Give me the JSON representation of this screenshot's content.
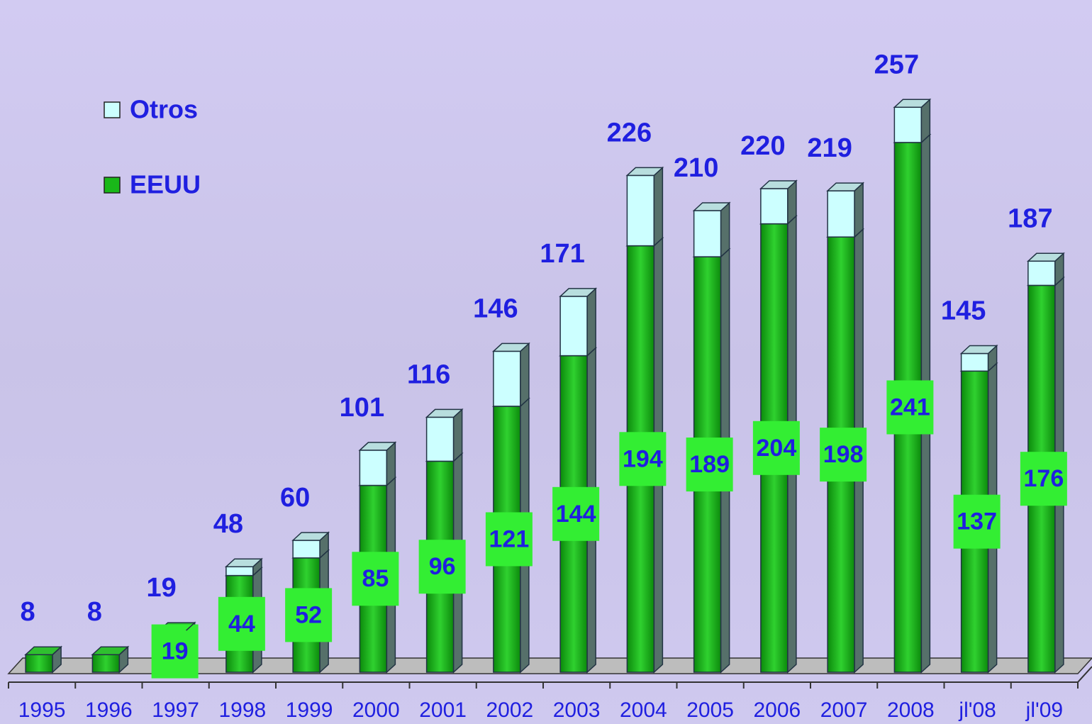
{
  "chart_data": {
    "type": "stacked-bar-3d",
    "categories": [
      "1995",
      "1996",
      "1997",
      "1998",
      "1999",
      "2000",
      "2001",
      "2002",
      "2003",
      "2004",
      "2005",
      "2006",
      "2007",
      "2008",
      "jl'08",
      "jl'09"
    ],
    "series": [
      {
        "name": "EEUU",
        "color": "#19b819",
        "values": [
          8,
          8,
          19,
          44,
          52,
          85,
          96,
          121,
          144,
          194,
          189,
          204,
          198,
          241,
          137,
          176
        ],
        "value_labels": [
          null,
          null,
          "19",
          "44",
          "52",
          "85",
          "96",
          "121",
          "144",
          "194",
          "189",
          "204",
          "198",
          "241",
          "137",
          "176"
        ]
      },
      {
        "name": "Otros",
        "color": "#ccffff",
        "values": [
          0,
          0,
          0,
          4,
          8,
          16,
          20,
          25,
          27,
          32,
          21,
          16,
          21,
          16,
          8,
          11
        ]
      }
    ],
    "totals": [
      8,
      8,
      19,
      48,
      60,
      101,
      116,
      146,
      171,
      226,
      210,
      220,
      219,
      257,
      145,
      187
    ],
    "ylim": [
      0,
      300
    ]
  }
}
